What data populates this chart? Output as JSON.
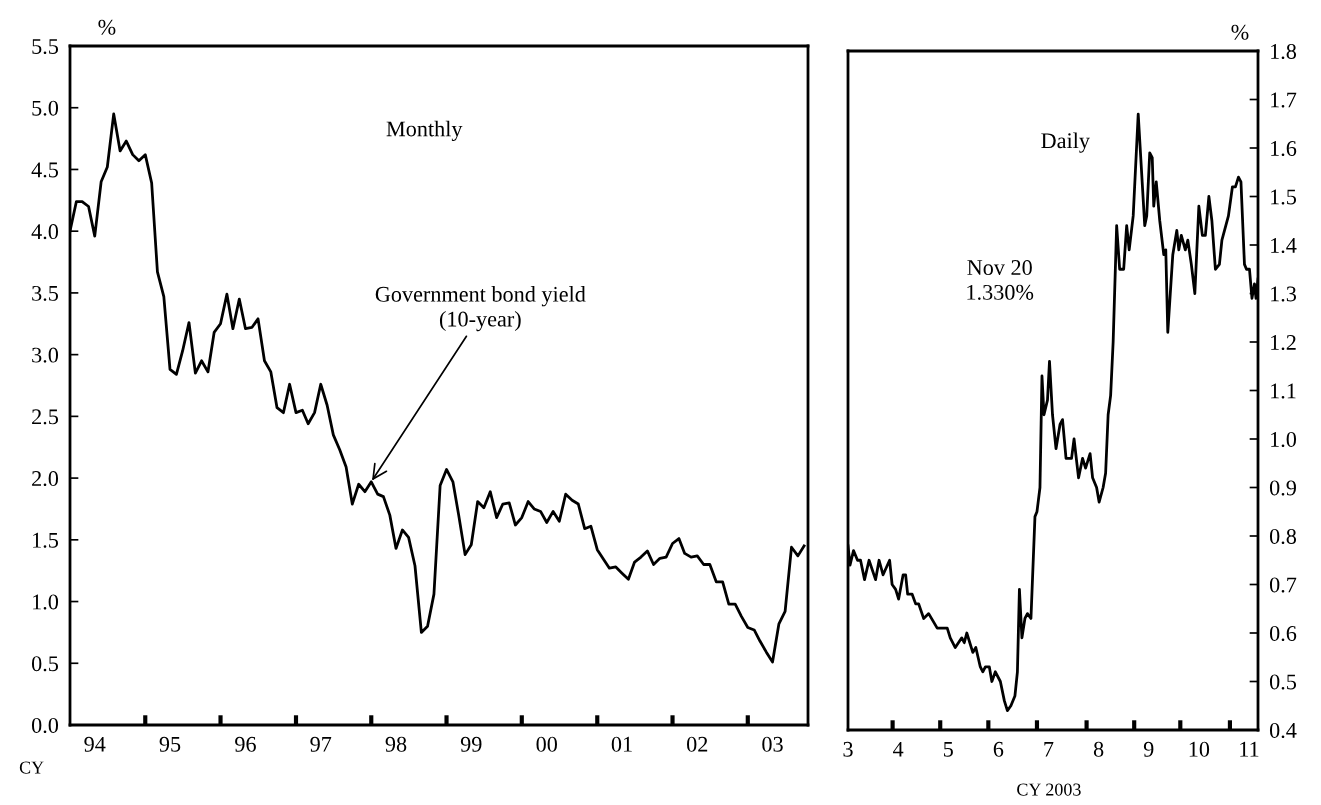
{
  "chart_data": [
    {
      "type": "line",
      "xlabel": "CY",
      "ylabel": "%",
      "xlim": [
        "1994-01-01",
        "2003-10-20"
      ],
      "ylim": [
        0,
        5.5
      ],
      "yticks": [
        {
          "value": 0,
          "label": "0.0"
        },
        0.5,
        {
          "value": 1,
          "label": "1.0"
        },
        1.5,
        {
          "value": 2,
          "label": "2.0"
        },
        2.5,
        {
          "value": 3,
          "label": "3.0"
        },
        3.5,
        {
          "value": 4,
          "label": "4.0"
        },
        4.5,
        {
          "value": 5,
          "label": "5.0"
        },
        5.5
      ],
      "xticks": [
        {
          "value": "1994-05",
          "label": "94"
        },
        {
          "value": "1995-05",
          "label": "95"
        },
        {
          "value": "1996-05",
          "label": "96"
        },
        {
          "value": "1997-05",
          "label": "97"
        },
        {
          "value": "1998-05",
          "label": "98"
        },
        {
          "value": "1999-05",
          "label": "99"
        },
        {
          "value": "2000-05",
          "label": "00"
        },
        {
          "value": "2001-05",
          "label": "01"
        },
        {
          "value": "2002-05",
          "label": "02"
        },
        {
          "value": "2003-05",
          "label": "03"
        },
        {
          "value": "1995-01",
          "label": null
        },
        {
          "value": "1996-01",
          "label": null
        },
        {
          "value": "1997-01",
          "label": null
        },
        {
          "value": "1998-01",
          "label": null
        },
        {
          "value": "1999-01",
          "label": null
        },
        {
          "value": "2000-01",
          "label": null
        },
        {
          "value": "2001-01",
          "label": null
        },
        {
          "value": "2002-01",
          "label": null
        },
        {
          "value": "2003-01",
          "label": null
        }
      ],
      "grid": false,
      "legend": false,
      "annotations": [
        "Monthly",
        {
          "text": "Government bond yield\n(10-year)",
          "x": "1998-01",
          "y": 1.97
        }
      ],
      "series": [
        {
          "color": "#000000",
          "x": [
            "1994-01",
            "1994-02",
            "1994-03",
            "1994-04",
            "1994-05",
            "1994-06",
            "1994-07",
            "1994-08",
            "1994-09",
            "1994-10",
            "1994-11",
            "1994-12",
            "1995-01",
            "1995-02",
            "1995-03",
            "1995-04",
            "1995-05",
            "1995-06",
            "1995-07",
            "1995-08",
            "1995-09",
            "1995-10",
            "1995-11",
            "1995-12",
            "1996-01",
            "1996-02",
            "1996-03",
            "1996-04",
            "1996-05",
            "1996-06",
            "1996-07",
            "1996-08",
            "1996-09",
            "1996-10",
            "1996-11",
            "1996-12",
            "1997-01",
            "1997-02",
            "1997-03",
            "1997-04",
            "1997-05",
            "1997-06",
            "1997-07",
            "1997-08",
            "1997-09",
            "1997-10",
            "1997-11",
            "1997-12",
            "1998-01",
            "1998-02",
            "1998-03",
            "1998-04",
            "1998-05",
            "1998-06",
            "1998-07",
            "1998-08",
            "1998-09",
            "1998-10",
            "1998-11",
            "1998-12",
            "1999-01",
            "1999-02",
            "1999-03",
            "1999-04",
            "1999-05",
            "1999-06",
            "1999-07",
            "1999-08",
            "1999-09",
            "1999-10",
            "1999-11",
            "1999-12",
            "2000-01",
            "2000-02",
            "2000-03",
            "2000-04",
            "2000-05",
            "2000-06",
            "2000-07",
            "2000-08",
            "2000-09",
            "2000-10",
            "2000-11",
            "2000-12",
            "2001-01",
            "2001-02",
            "2001-03",
            "2001-04",
            "2001-05",
            "2001-06",
            "2001-07",
            "2001-08",
            "2001-09",
            "2001-10",
            "2001-11",
            "2001-12",
            "2002-01",
            "2002-02",
            "2002-03",
            "2002-04",
            "2002-05",
            "2002-06",
            "2002-07",
            "2002-08",
            "2002-09",
            "2002-10",
            "2002-11",
            "2002-12",
            "2003-01",
            "2003-02",
            "2003-03",
            "2003-04",
            "2003-05",
            "2003-06",
            "2003-07",
            "2003-08",
            "2003-09",
            "2003-10"
          ],
          "values": [
            4.0,
            4.24,
            4.24,
            4.2,
            3.96,
            4.4,
            4.52,
            4.95,
            4.65,
            4.73,
            4.62,
            4.57,
            4.62,
            4.39,
            3.67,
            3.47,
            2.88,
            2.84,
            3.03,
            3.26,
            2.85,
            2.95,
            2.86,
            3.18,
            3.25,
            3.49,
            3.21,
            3.45,
            3.21,
            3.22,
            3.29,
            2.95,
            2.86,
            2.57,
            2.53,
            2.76,
            2.53,
            2.55,
            2.44,
            2.53,
            2.76,
            2.59,
            2.35,
            2.23,
            2.09,
            1.79,
            1.95,
            1.89,
            1.97,
            1.87,
            1.85,
            1.7,
            1.43,
            1.58,
            1.52,
            1.29,
            0.75,
            0.8,
            1.06,
            1.94,
            2.07,
            1.97,
            1.7,
            1.38,
            1.46,
            1.81,
            1.76,
            1.89,
            1.68,
            1.79,
            1.8,
            1.62,
            1.68,
            1.81,
            1.75,
            1.73,
            1.64,
            1.73,
            1.65,
            1.87,
            1.82,
            1.79,
            1.59,
            1.61,
            1.42,
            1.34,
            1.27,
            1.28,
            1.23,
            1.18,
            1.32,
            1.36,
            1.41,
            1.3,
            1.35,
            1.36,
            1.47,
            1.51,
            1.39,
            1.36,
            1.37,
            1.3,
            1.3,
            1.16,
            1.16,
            0.98,
            0.98,
            0.88,
            0.79,
            0.77,
            0.68,
            0.59,
            0.51,
            0.82,
            0.92,
            1.44,
            1.37,
            1.45
          ]
        }
      ]
    },
    {
      "type": "line",
      "xlabel": "CY 2003",
      "y2label": "%",
      "xlim": [
        3.0,
        11.18
      ],
      "y2lim": [
        0.4,
        1.8
      ],
      "y2ticks": [
        0.4,
        0.5,
        0.6,
        0.7,
        0.8,
        0.9,
        {
          "value": 1,
          "label": "1.0"
        },
        1.1,
        1.2,
        1.3,
        1.4,
        1.5,
        1.6,
        1.7,
        1.8
      ],
      "xticks": [
        {
          "value": 3,
          "label": "3"
        },
        {
          "value": 4,
          "label": "4"
        },
        {
          "value": 5,
          "label": "5"
        },
        {
          "value": 6,
          "label": "6"
        },
        {
          "value": 7,
          "label": "7"
        },
        {
          "value": 8,
          "label": "8"
        },
        {
          "value": 9,
          "label": "9"
        },
        {
          "value": 10,
          "label": "10"
        },
        {
          "value": 11,
          "label": "11"
        },
        {
          "value": 3.89,
          "label": null
        },
        {
          "value": 4.84,
          "label": null
        },
        {
          "value": 5.8,
          "label": null
        },
        {
          "value": 6.77,
          "label": null
        },
        {
          "value": 7.76,
          "label": null
        },
        {
          "value": 8.71,
          "label": null
        },
        {
          "value": 9.63,
          "label": null
        },
        {
          "value": 10.62,
          "label": null
        }
      ],
      "grid": false,
      "legend": false,
      "annotations": [
        "Daily",
        "Nov 20\n1.330%"
      ],
      "series": [
        {
          "color": "#000000",
          "axis": "y2",
          "x": [
            3.0,
            3.04,
            3.11,
            3.19,
            3.25,
            3.33,
            3.42,
            3.55,
            3.62,
            3.7,
            3.83,
            3.88,
            3.95,
            4.01,
            4.1,
            4.15,
            4.19,
            4.28,
            4.35,
            4.41,
            4.51,
            4.61,
            4.78,
            4.92,
            4.98,
            5.04,
            5.14,
            5.27,
            5.32,
            5.37,
            5.49,
            5.55,
            5.64,
            5.69,
            5.74,
            5.82,
            5.87,
            5.94,
            6.04,
            6.12,
            6.18,
            6.25,
            6.33,
            6.38,
            6.42,
            6.47,
            6.53,
            6.58,
            6.65,
            6.73,
            6.77,
            6.83,
            6.87,
            6.91,
            6.98,
            7.02,
            7.08,
            7.15,
            7.23,
            7.28,
            7.35,
            7.46,
            7.51,
            7.6,
            7.68,
            7.74,
            7.83,
            7.88,
            7.96,
            8.01,
            8.09,
            8.14,
            8.19,
            8.24,
            8.29,
            8.36,
            8.42,
            8.5,
            8.56,
            8.61,
            8.69,
            8.79,
            8.92,
            8.96,
            9.02,
            9.07,
            9.1,
            9.15,
            9.22,
            9.3,
            9.34,
            9.38,
            9.48,
            9.56,
            9.6,
            9.65,
            9.73,
            9.78,
            9.85,
            9.92,
            10.0,
            10.07,
            10.13,
            10.2,
            10.26,
            10.33,
            10.41,
            10.46,
            10.59,
            10.67,
            10.73,
            10.79,
            10.84,
            10.91,
            10.95,
            11.01,
            11.06,
            11.11,
            11.14,
            11.18
          ],
          "values": [
            0.78,
            0.74,
            0.77,
            0.75,
            0.75,
            0.71,
            0.75,
            0.71,
            0.75,
            0.72,
            0.75,
            0.7,
            0.69,
            0.67,
            0.72,
            0.72,
            0.68,
            0.68,
            0.66,
            0.66,
            0.63,
            0.64,
            0.61,
            0.61,
            0.61,
            0.59,
            0.57,
            0.59,
            0.58,
            0.6,
            0.56,
            0.57,
            0.53,
            0.52,
            0.53,
            0.53,
            0.5,
            0.52,
            0.5,
            0.46,
            0.44,
            0.45,
            0.47,
            0.52,
            0.69,
            0.59,
            0.63,
            0.64,
            0.63,
            0.84,
            0.85,
            0.9,
            1.13,
            1.05,
            1.08,
            1.16,
            1.05,
            0.98,
            1.03,
            1.04,
            0.96,
            0.96,
            1.0,
            0.92,
            0.96,
            0.94,
            0.97,
            0.92,
            0.9,
            0.87,
            0.9,
            0.93,
            1.05,
            1.09,
            1.2,
            1.44,
            1.35,
            1.35,
            1.44,
            1.39,
            1.46,
            1.67,
            1.44,
            1.46,
            1.59,
            1.58,
            1.48,
            1.53,
            1.45,
            1.38,
            1.39,
            1.22,
            1.38,
            1.43,
            1.39,
            1.42,
            1.39,
            1.41,
            1.36,
            1.3,
            1.48,
            1.42,
            1.42,
            1.5,
            1.45,
            1.35,
            1.36,
            1.41,
            1.46,
            1.52,
            1.52,
            1.54,
            1.53,
            1.36,
            1.35,
            1.35,
            1.29,
            1.32,
            1.29,
            1.33
          ]
        }
      ]
    }
  ]
}
